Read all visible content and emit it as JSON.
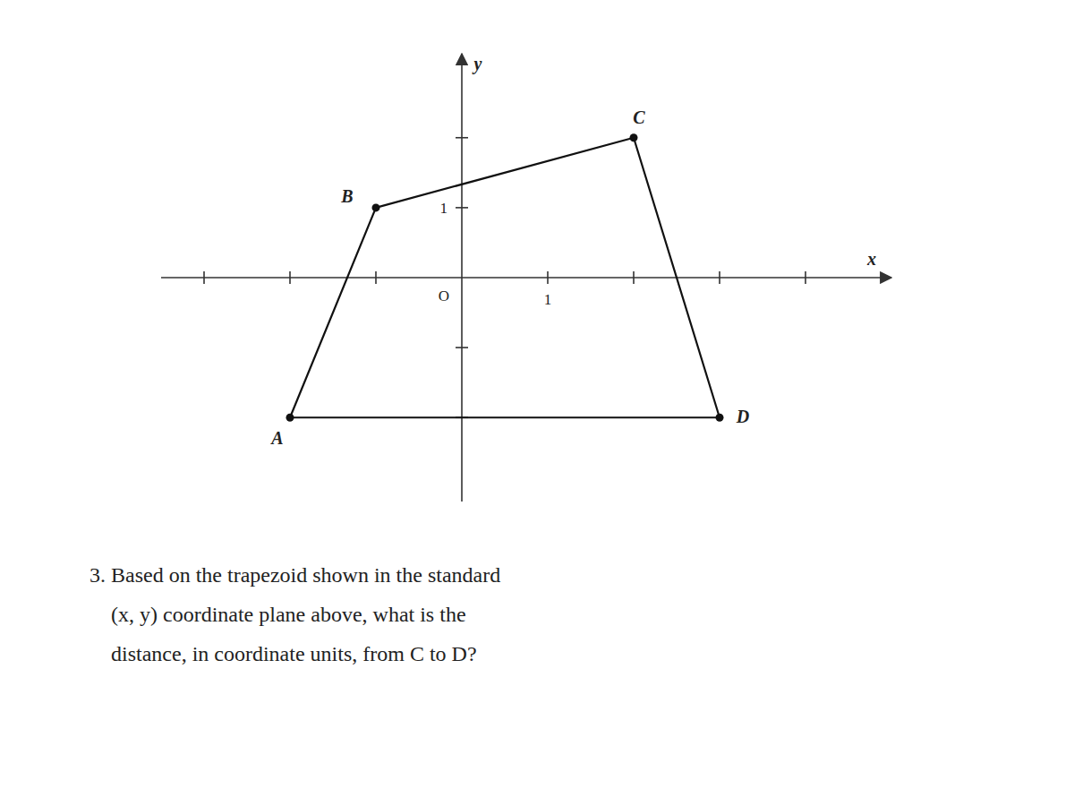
{
  "chart_data": {
    "type": "polygon",
    "xlabel": "x",
    "ylabel": "y",
    "origin_label": "O",
    "x": [
      -2,
      -1,
      2,
      3
    ],
    "values": [
      -2,
      1,
      2,
      -2
    ],
    "point_labels": [
      "A",
      "B",
      "C",
      "D"
    ],
    "color": "#111111",
    "marker": "o",
    "xlim": [
      -3.5,
      5.0
    ],
    "ylim": [
      -3.2,
      3.2
    ],
    "xticks": [
      {
        "value": -3,
        "label": null
      },
      {
        "value": -2,
        "label": null
      },
      {
        "value": -1,
        "label": null
      },
      1,
      {
        "value": 2,
        "label": null
      },
      {
        "value": 3,
        "label": null
      },
      {
        "value": 4,
        "label": null
      }
    ],
    "yticks": [
      {
        "value": -2,
        "label": null
      },
      {
        "value": -1,
        "label": null
      },
      1,
      {
        "value": 2,
        "label": null
      }
    ],
    "annotations": [
      "3. Based on the trapezoid shown in the standard",
      "    (x, y) coordinate plane above, what is the",
      "    distance, in coordinate units, from C to D?"
    ],
    "grid": false
  }
}
